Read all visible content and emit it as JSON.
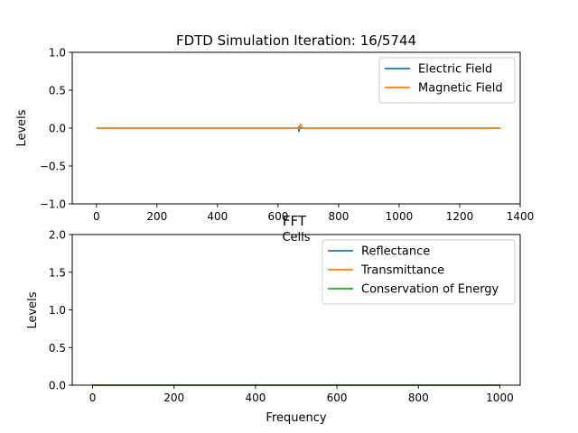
{
  "chart_data": [
    {
      "type": "line",
      "title": "FDTD Simulation Iteration: 16/5744",
      "xlabel": "Cells",
      "ylabel": "Levels",
      "xlim": [
        -80,
        1400
      ],
      "ylim": [
        -1.0,
        1.0
      ],
      "xticks": [
        0,
        200,
        400,
        600,
        800,
        1000,
        1200,
        1400
      ],
      "xtick_labels": [
        "0",
        "200",
        "400",
        "600",
        "800",
        "1000",
        "1200",
        "1400"
      ],
      "yticks": [
        -1.0,
        -0.5,
        0.0,
        0.5,
        1.0
      ],
      "ytick_labels": [
        "−1.0",
        "−0.5",
        "0.0",
        "0.5",
        "1.0"
      ],
      "grid": false,
      "legend_position": "top-right",
      "series": [
        {
          "name": "Electric Field",
          "color": "#1f77b4",
          "x": [
            0,
            665,
            667,
            668,
            669,
            670,
            671,
            672,
            1335
          ],
          "y": [
            0,
            0,
            0.01,
            -0.02,
            -0.05,
            -0.03,
            0.01,
            0,
            0
          ]
        },
        {
          "name": "Magnetic Field",
          "color": "#ff7f0e",
          "x": [
            0,
            670,
            672,
            674,
            676,
            678,
            680,
            682,
            1335
          ],
          "y": [
            0,
            0,
            0.03,
            0.05,
            0.04,
            0.02,
            0.005,
            0,
            0
          ]
        }
      ]
    },
    {
      "type": "line",
      "title": "FFT",
      "xlabel": "Frequency",
      "ylabel": "Levels",
      "xlim": [
        -50,
        1050
      ],
      "ylim": [
        0.0,
        2.0
      ],
      "xticks": [
        0,
        200,
        400,
        600,
        800,
        1000
      ],
      "xtick_labels": [
        "0",
        "200",
        "400",
        "600",
        "800",
        "1000"
      ],
      "yticks": [
        0.0,
        0.5,
        1.0,
        1.5,
        2.0
      ],
      "ytick_labels": [
        "0.0",
        "0.5",
        "1.0",
        "1.5",
        "2.0"
      ],
      "grid": false,
      "legend_position": "top-right",
      "series": [
        {
          "name": "Reflectance",
          "color": "#1f77b4",
          "x": [
            0,
            1000
          ],
          "y": [
            0,
            0
          ]
        },
        {
          "name": "Transmittance",
          "color": "#ff7f0e",
          "x": [
            0,
            1000
          ],
          "y": [
            0,
            0
          ]
        },
        {
          "name": "Conservation of Energy",
          "color": "#2ca02c",
          "x": [
            0,
            1000
          ],
          "y": [
            0,
            0
          ]
        }
      ]
    }
  ]
}
